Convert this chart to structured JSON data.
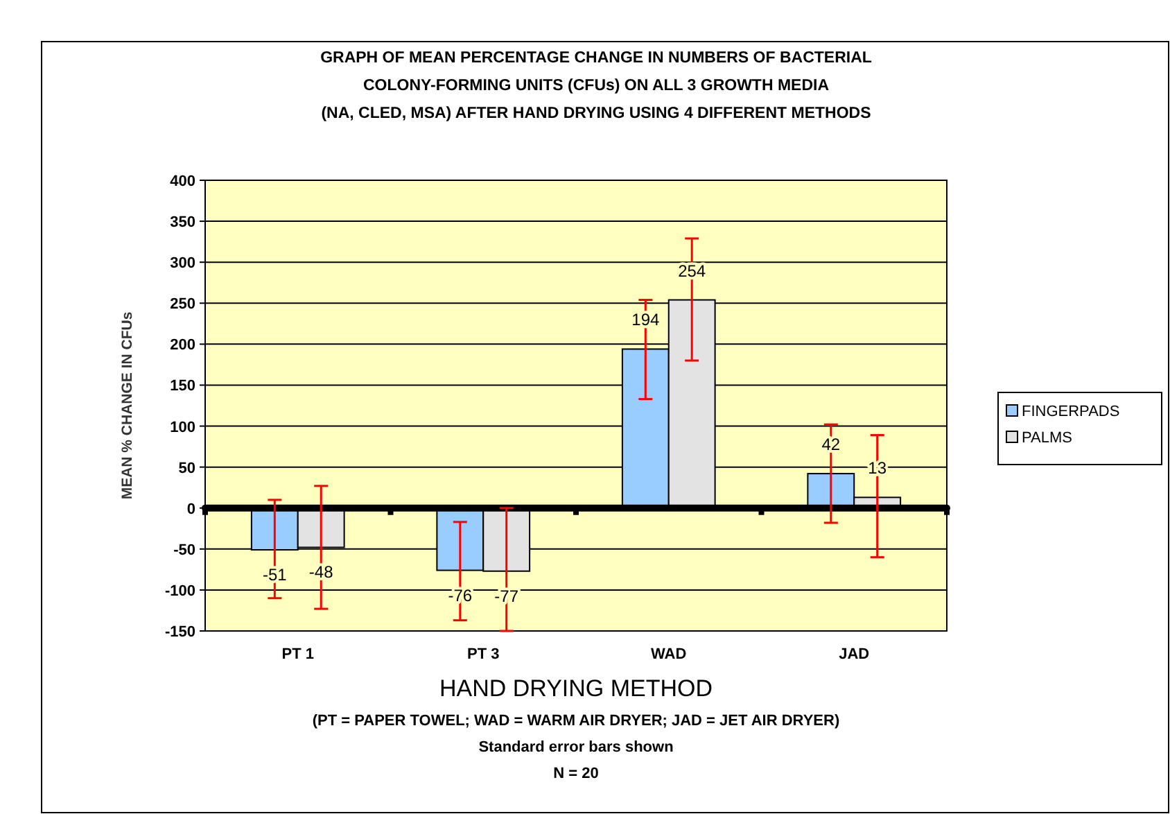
{
  "chart_data": {
    "type": "bar",
    "title": "GRAPH OF MEAN PERCENTAGE CHANGE IN NUMBERS OF BACTERIAL\nCOLONY-FORMING UNITS (CFUs) ON ALL 3 GROWTH MEDIA\n(NA, CLED, MSA) AFTER HAND DRYING USING 4 DIFFERENT METHODS",
    "xlabel": "HAND DRYING METHOD",
    "ylabel": "MEAN % CHANGE IN CFUs",
    "categories": [
      "PT 1",
      "PT 3",
      "WAD",
      "JAD"
    ],
    "series": [
      {
        "name": "FINGERPADS",
        "color": "#99ccff",
        "values": [
          -51,
          -76,
          194,
          42
        ],
        "errors": [
          [
            -110,
            10
          ],
          [
            -137,
            -17
          ],
          [
            133,
            254
          ],
          [
            -18,
            102
          ]
        ]
      },
      {
        "name": "PALMS",
        "color": "#e3e3e3",
        "values": [
          -48,
          -77,
          254,
          13
        ],
        "errors": [
          [
            -123,
            27
          ],
          [
            -150,
            0
          ],
          [
            180,
            329
          ],
          [
            -60,
            89
          ]
        ]
      }
    ],
    "ylim": [
      -150,
      400
    ],
    "yticks": [
      -150,
      -100,
      -50,
      0,
      50,
      100,
      150,
      200,
      250,
      300,
      350,
      400
    ],
    "grid": "y",
    "legend": "right",
    "data_labels": true,
    "annotations": [
      "(PT = PAPER TOWEL; WAD = WARM AIR DRYER; JAD = JET AIR DRYER)",
      "Standard error bars shown",
      "N = 20"
    ]
  }
}
